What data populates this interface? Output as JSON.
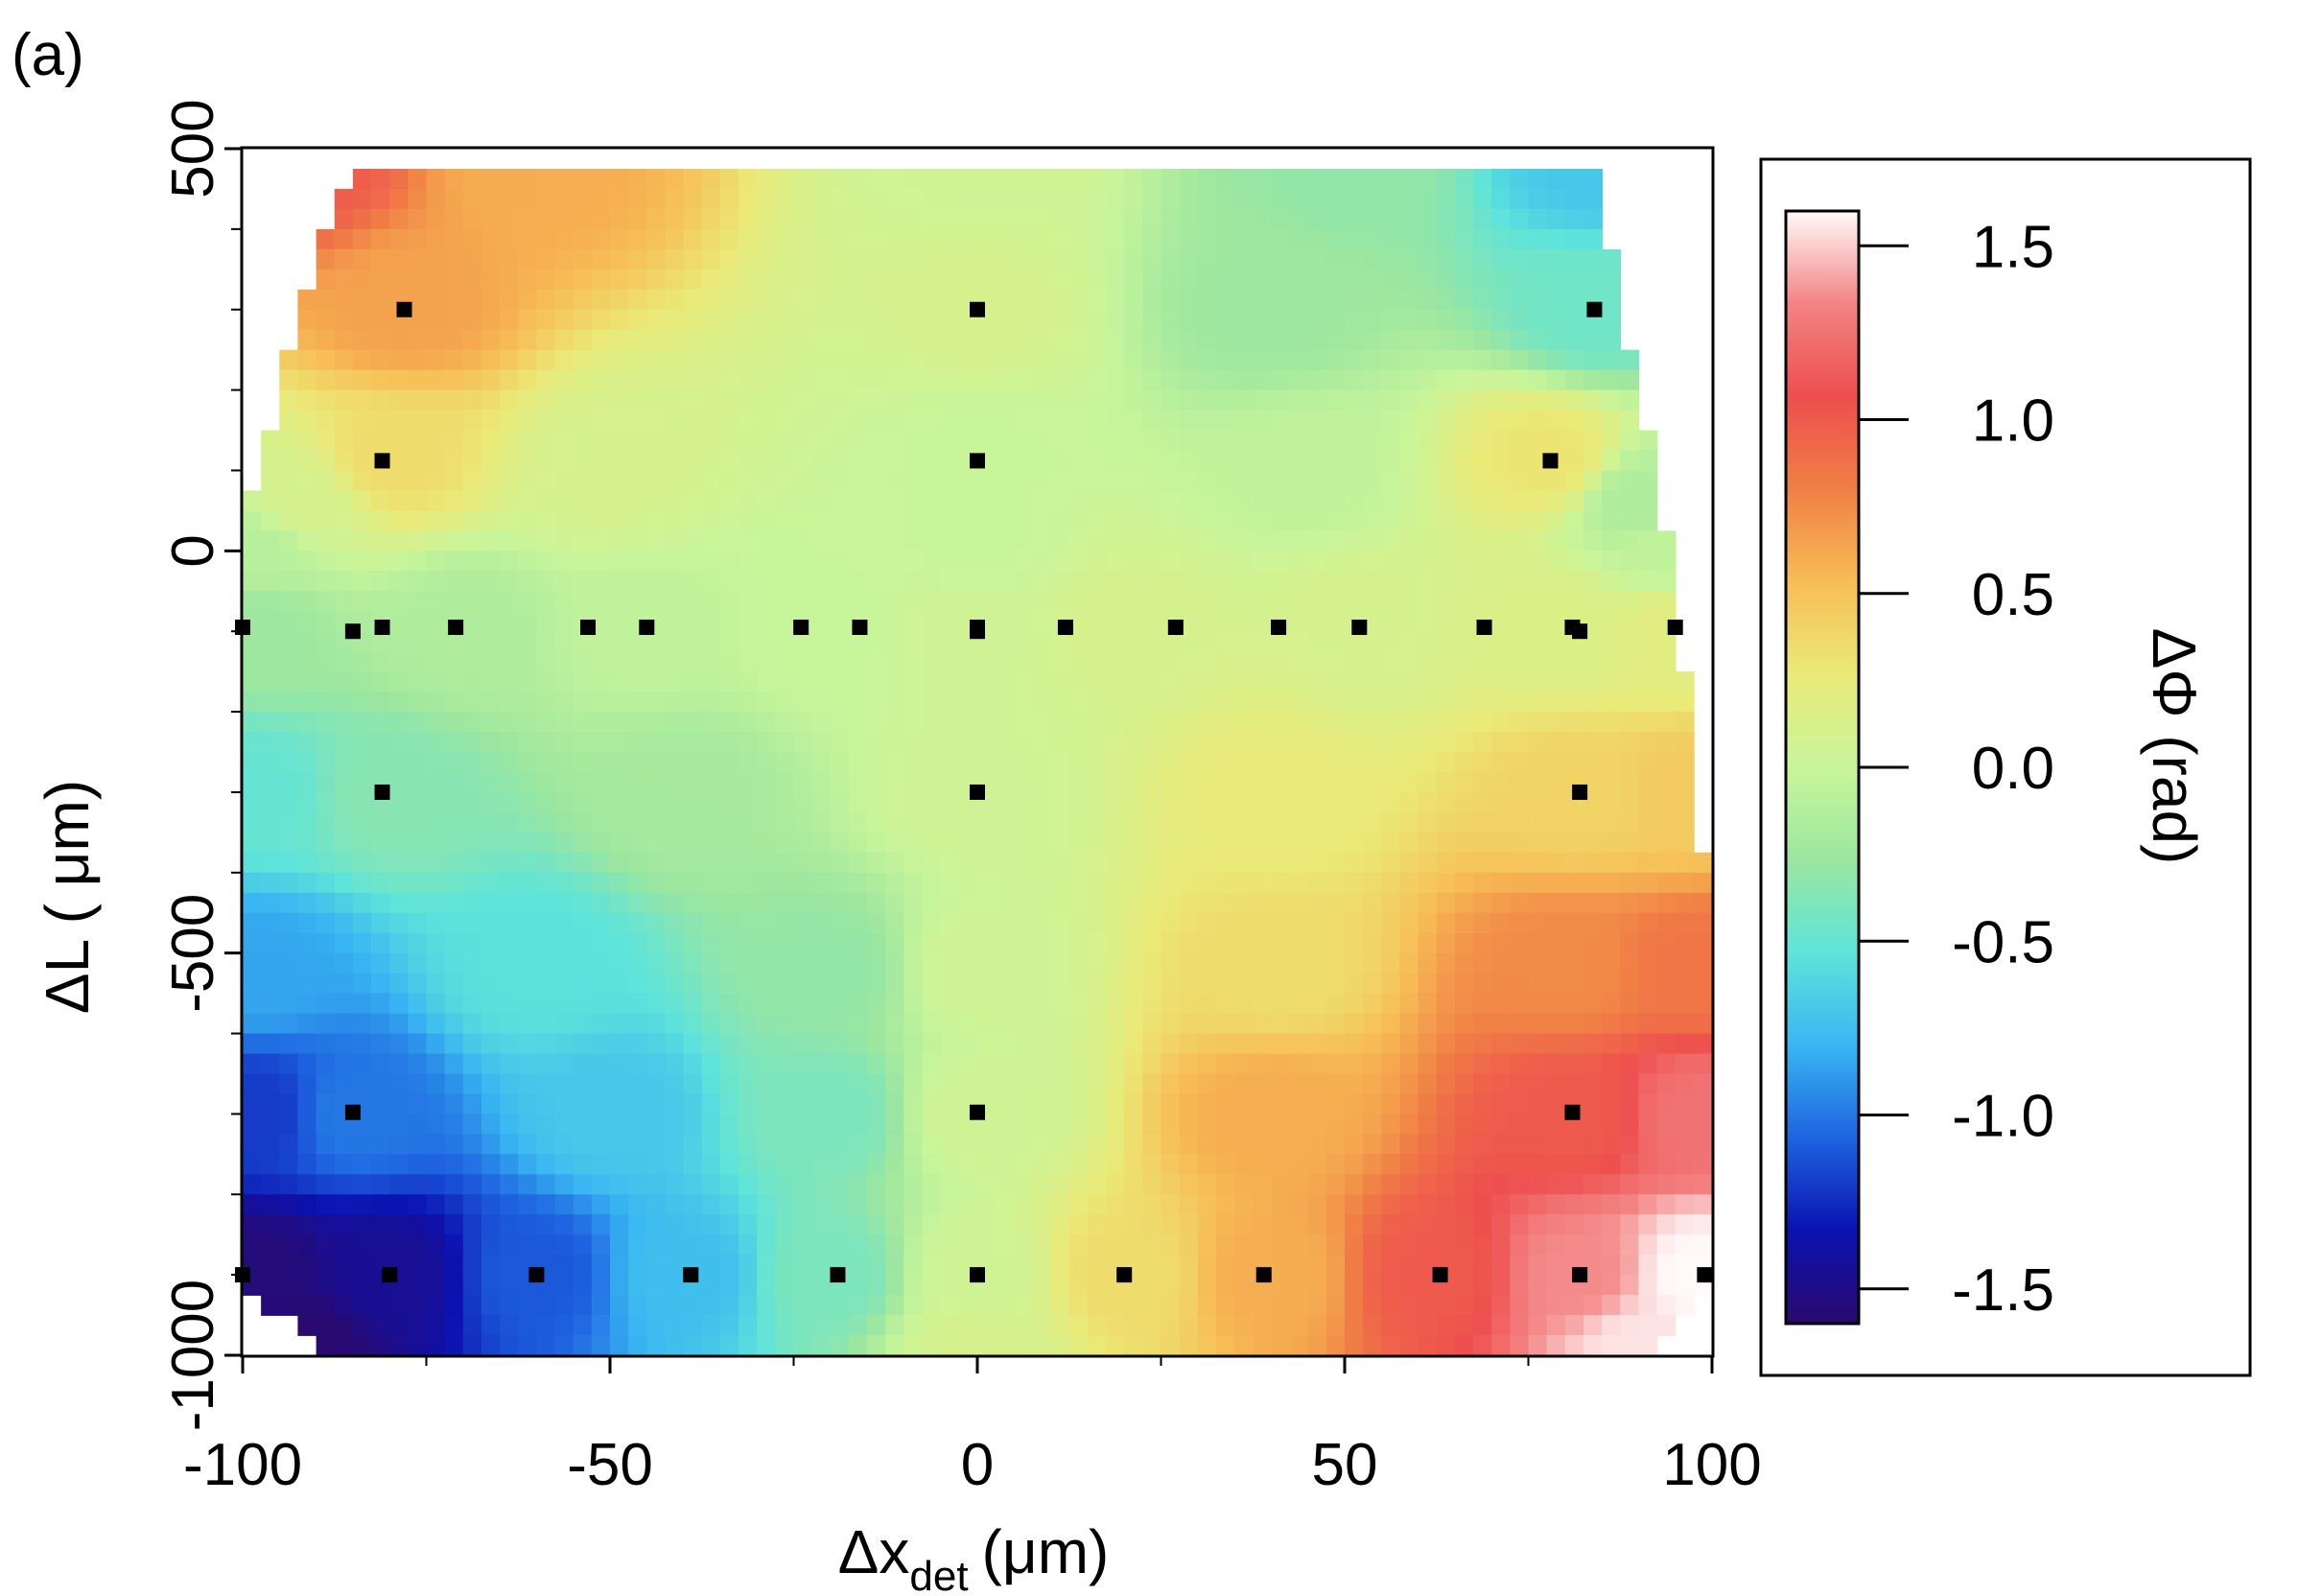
{
  "panel_label": "(a)",
  "chart_data": {
    "type": "heatmap",
    "xlabel": "Δx",
    "xlabel_sub": "det",
    "xlabel_unit": "(μm)",
    "ylabel": "ΔL ( μm)",
    "xlim": [
      -100,
      100
    ],
    "ylim": [
      -1000,
      500
    ],
    "x_ticks": [
      "-100",
      "-50",
      "0",
      "50",
      "100"
    ],
    "y_ticks": [
      "500",
      "0",
      "-500",
      "-1000"
    ],
    "x_tick_values": [
      -100,
      -50,
      0,
      50,
      100
    ],
    "y_tick_values": [
      500,
      0,
      -500,
      -1000
    ],
    "colorbar": {
      "label": "ΔΦ (rad)",
      "range": [
        -1.6,
        1.6
      ],
      "ticks": [
        "1.5",
        "1.0",
        "0.5",
        "0.0",
        "-0.5",
        "-1.0",
        "-1.5"
      ],
      "tick_values": [
        1.5,
        1.0,
        0.5,
        0.0,
        -0.5,
        -1.0,
        -1.5
      ],
      "colors": [
        "#2a0a6e",
        "#0b12b0",
        "#1e63e0",
        "#39b6f2",
        "#5ee4da",
        "#9be6a0",
        "#c9f59a",
        "#eaea78",
        "#f7bd55",
        "#f07f45",
        "#ee4e4e",
        "#f38383",
        "#fffafa"
      ]
    },
    "samples": [
      {
        "x": -92,
        "y": 480,
        "v": 1.0
      },
      {
        "x": -60,
        "y": 480,
        "v": 0.6
      },
      {
        "x": 0,
        "y": 480,
        "v": 0.05
      },
      {
        "x": 50,
        "y": 480,
        "v": -0.3
      },
      {
        "x": 85,
        "y": 480,
        "v": -0.7
      },
      {
        "x": -78,
        "y": 300,
        "v": 0.65
      },
      {
        "x": 0,
        "y": 300,
        "v": 0.1
      },
      {
        "x": 40,
        "y": 300,
        "v": -0.25
      },
      {
        "x": 84,
        "y": 300,
        "v": -0.45
      },
      {
        "x": -80,
        "y": 115,
        "v": 0.35
      },
      {
        "x": -92,
        "y": 60,
        "v": 0.1
      },
      {
        "x": -50,
        "y": 100,
        "v": 0.1
      },
      {
        "x": 0,
        "y": 115,
        "v": 0.0
      },
      {
        "x": 45,
        "y": 100,
        "v": -0.05
      },
      {
        "x": 78,
        "y": 115,
        "v": 0.3
      },
      {
        "x": 90,
        "y": 60,
        "v": -0.15
      },
      {
        "x": -98,
        "y": 0,
        "v": -0.1
      },
      {
        "x": 0,
        "y": 0,
        "v": 0.0
      },
      {
        "x": 94,
        "y": 0,
        "v": -0.05
      },
      {
        "x": -98,
        "y": -95,
        "v": -0.25
      },
      {
        "x": -70,
        "y": -95,
        "v": -0.15
      },
      {
        "x": -45,
        "y": -95,
        "v": -0.05
      },
      {
        "x": -20,
        "y": -95,
        "v": 0.0
      },
      {
        "x": 0,
        "y": -95,
        "v": 0.05
      },
      {
        "x": 20,
        "y": -95,
        "v": 0.1
      },
      {
        "x": 52,
        "y": -95,
        "v": 0.1
      },
      {
        "x": 80,
        "y": -95,
        "v": 0.15
      },
      {
        "x": 95,
        "y": -95,
        "v": 0.2
      },
      {
        "x": -98,
        "y": -300,
        "v": -0.5
      },
      {
        "x": -80,
        "y": -300,
        "v": -0.35
      },
      {
        "x": -40,
        "y": -300,
        "v": -0.2
      },
      {
        "x": 0,
        "y": -300,
        "v": 0.05
      },
      {
        "x": 40,
        "y": -300,
        "v": 0.25
      },
      {
        "x": 82,
        "y": -300,
        "v": 0.4
      },
      {
        "x": 97,
        "y": -300,
        "v": 0.45
      },
      {
        "x": -98,
        "y": -520,
        "v": -0.85
      },
      {
        "x": -60,
        "y": -520,
        "v": -0.55
      },
      {
        "x": -20,
        "y": -520,
        "v": -0.3
      },
      {
        "x": 0,
        "y": -520,
        "v": 0.05
      },
      {
        "x": 40,
        "y": -520,
        "v": 0.35
      },
      {
        "x": 80,
        "y": -520,
        "v": 0.75
      },
      {
        "x": 98,
        "y": -520,
        "v": 0.85
      },
      {
        "x": -98,
        "y": -700,
        "v": -1.2
      },
      {
        "x": -85,
        "y": -700,
        "v": -1.0
      },
      {
        "x": -50,
        "y": -700,
        "v": -0.7
      },
      {
        "x": -20,
        "y": -700,
        "v": -0.4
      },
      {
        "x": 0,
        "y": -700,
        "v": 0.05
      },
      {
        "x": 40,
        "y": -700,
        "v": 0.6
      },
      {
        "x": 81,
        "y": -700,
        "v": 1.0
      },
      {
        "x": 98,
        "y": -700,
        "v": 1.25
      },
      {
        "x": -98,
        "y": -900,
        "v": -1.55
      },
      {
        "x": -80,
        "y": -900,
        "v": -1.45
      },
      {
        "x": -60,
        "y": -900,
        "v": -1.1
      },
      {
        "x": -40,
        "y": -900,
        "v": -0.75
      },
      {
        "x": -20,
        "y": -900,
        "v": -0.4
      },
      {
        "x": 0,
        "y": -900,
        "v": 0.05
      },
      {
        "x": 20,
        "y": -900,
        "v": 0.35
      },
      {
        "x": 40,
        "y": -900,
        "v": 0.6
      },
      {
        "x": 62,
        "y": -900,
        "v": 1.0
      },
      {
        "x": 82,
        "y": -900,
        "v": 1.35
      },
      {
        "x": 98,
        "y": -900,
        "v": 1.6
      },
      {
        "x": -92,
        "y": -990,
        "v": -1.6
      },
      {
        "x": 0,
        "y": -990,
        "v": 0.1
      },
      {
        "x": 90,
        "y": -990,
        "v": 1.55
      }
    ],
    "valid_region": [
      {
        "y": 480,
        "xmin": -85,
        "xmax": 84
      },
      {
        "y": 400,
        "xmin": -89,
        "xmax": 86
      },
      {
        "y": 300,
        "xmin": -92,
        "xmax": 87
      },
      {
        "y": 200,
        "xmin": -95,
        "xmax": 90
      },
      {
        "y": 100,
        "xmin": -98,
        "xmax": 92
      },
      {
        "y": 0,
        "xmin": -100,
        "xmax": 94
      },
      {
        "y": -100,
        "xmin": -100,
        "xmax": 95
      },
      {
        "y": -250,
        "xmin": -100,
        "xmax": 98
      },
      {
        "y": -370,
        "xmin": -100,
        "xmax": 98
      },
      {
        "y": -390,
        "xmin": -100,
        "xmax": 100
      },
      {
        "y": -900,
        "xmin": -100,
        "xmax": 100
      },
      {
        "y": -930,
        "xmin": -98,
        "xmax": 99
      },
      {
        "y": -960,
        "xmin": -94,
        "xmax": 96
      },
      {
        "y": -990,
        "xmin": -90,
        "xmax": 93
      }
    ],
    "points": [
      {
        "x": -78,
        "y": 300
      },
      {
        "x": 0,
        "y": 300
      },
      {
        "x": 84,
        "y": 300
      },
      {
        "x": -81,
        "y": 112
      },
      {
        "x": 0,
        "y": 112
      },
      {
        "x": 78,
        "y": 112
      },
      {
        "x": -100,
        "y": -95
      },
      {
        "x": -85,
        "y": -100
      },
      {
        "x": -81,
        "y": -95
      },
      {
        "x": -71,
        "y": -95
      },
      {
        "x": -53,
        "y": -95
      },
      {
        "x": -45,
        "y": -95
      },
      {
        "x": -24,
        "y": -95
      },
      {
        "x": -16,
        "y": -95
      },
      {
        "x": 0,
        "y": -95
      },
      {
        "x": 0,
        "y": -100
      },
      {
        "x": 12,
        "y": -95
      },
      {
        "x": 27,
        "y": -95
      },
      {
        "x": 41,
        "y": -95
      },
      {
        "x": 52,
        "y": -95
      },
      {
        "x": 69,
        "y": -95
      },
      {
        "x": 81,
        "y": -95
      },
      {
        "x": 82,
        "y": -100
      },
      {
        "x": 95,
        "y": -95
      },
      {
        "x": -81,
        "y": -300
      },
      {
        "x": 0,
        "y": -300
      },
      {
        "x": 82,
        "y": -300
      },
      {
        "x": -85,
        "y": -698
      },
      {
        "x": 0,
        "y": -698
      },
      {
        "x": 81,
        "y": -698
      },
      {
        "x": -100,
        "y": -900
      },
      {
        "x": -80,
        "y": -900
      },
      {
        "x": -60,
        "y": -900
      },
      {
        "x": -39,
        "y": -900
      },
      {
        "x": -19,
        "y": -900
      },
      {
        "x": 0,
        "y": -900
      },
      {
        "x": 20,
        "y": -900
      },
      {
        "x": 39,
        "y": -900
      },
      {
        "x": 63,
        "y": -900
      },
      {
        "x": 82,
        "y": -900
      },
      {
        "x": 99,
        "y": -900
      }
    ]
  }
}
